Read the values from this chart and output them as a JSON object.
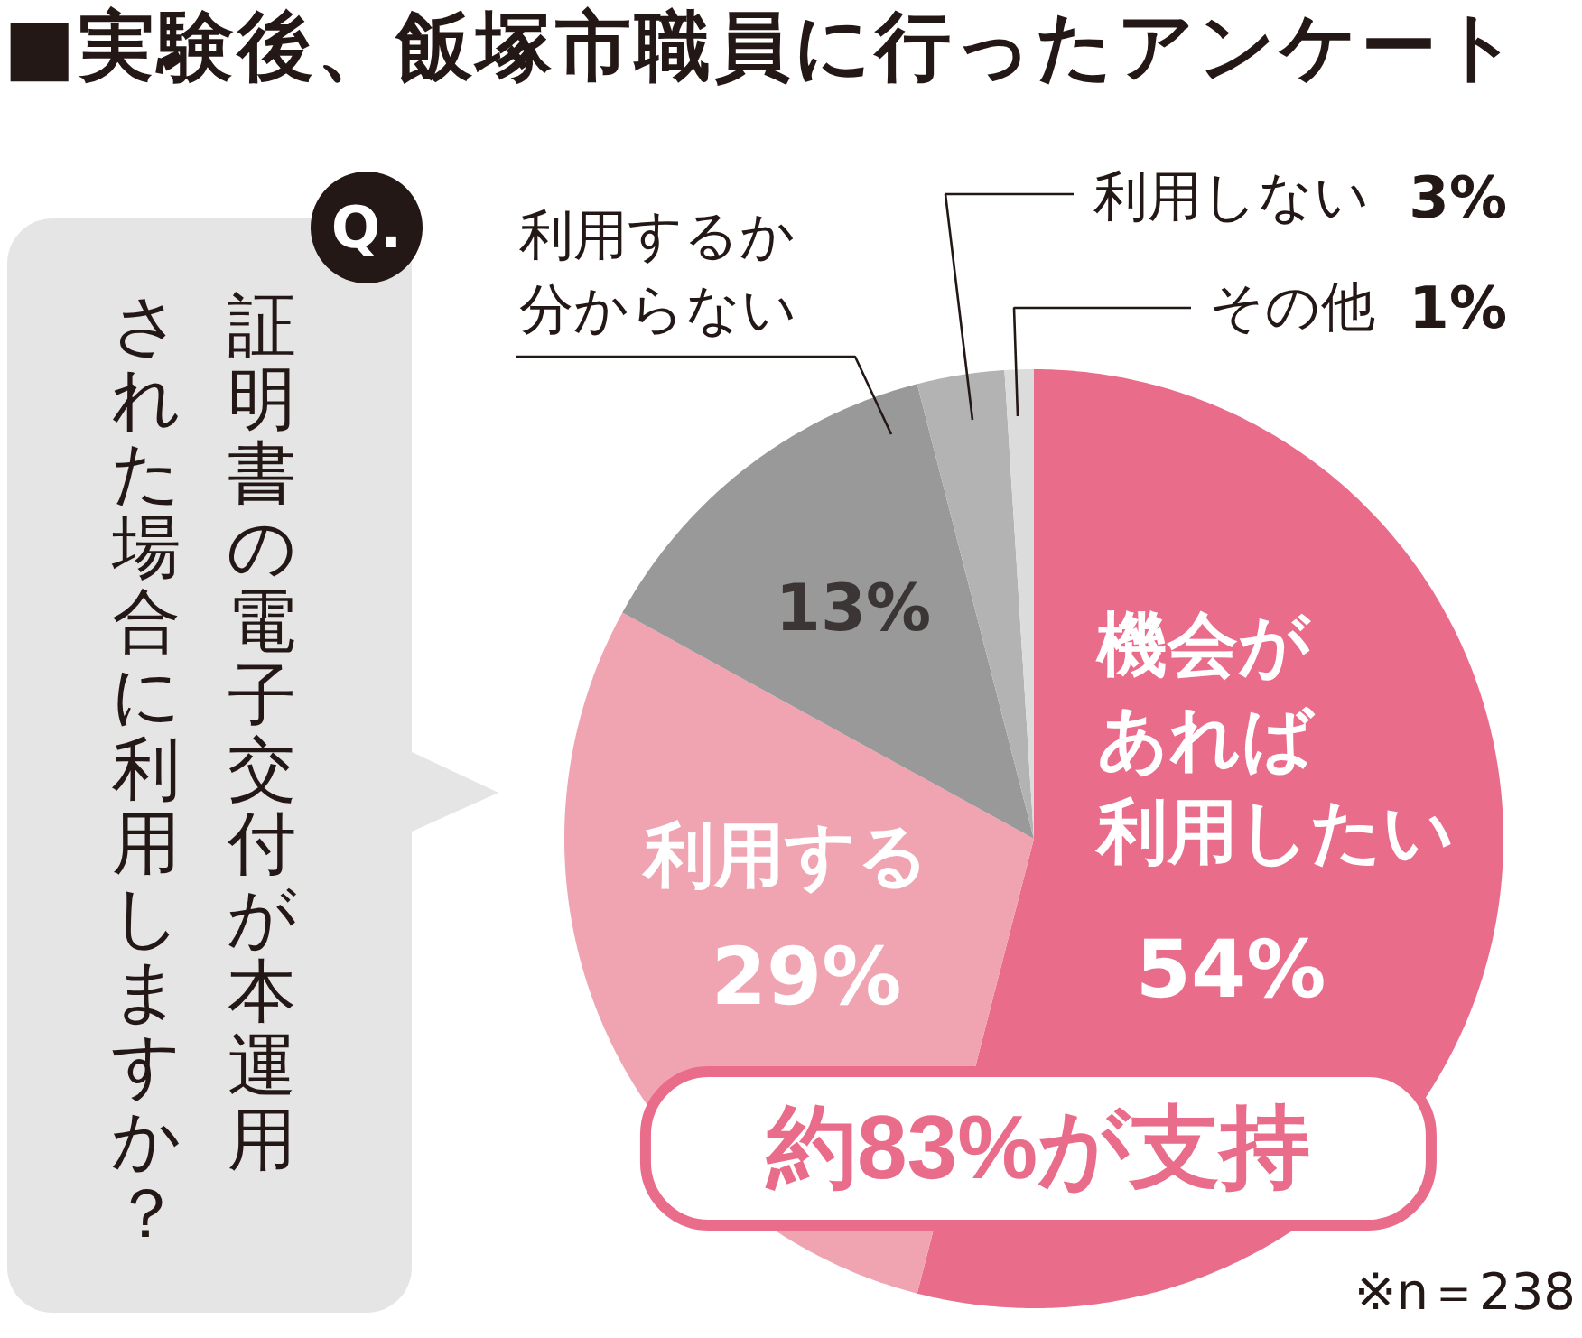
{
  "chart_data": {
    "type": "pie",
    "title": "■実験後、飯塚市職員に行ったアンケート",
    "categories": [
      "機会があれば利用したい",
      "利用する",
      "利用するか分からない",
      "利用しない",
      "その他"
    ],
    "values": [
      54,
      29,
      13,
      3,
      1
    ],
    "colors": [
      "#ea6c8b",
      "#f0a3b0",
      "#999999",
      "#b3b3b3",
      "#dcdcdc"
    ],
    "value_labels": [
      "54%",
      "29%",
      "13%",
      "3%",
      "1%"
    ],
    "annotations": [
      "Q.",
      "証明書の電子交付が本運用された場合に利用しますか？",
      "約83%が支持",
      "※n＝238"
    ]
  }
}
